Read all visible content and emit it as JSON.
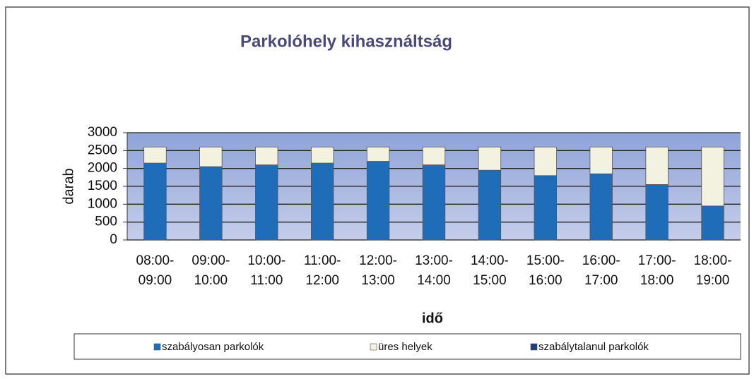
{
  "chart_data": {
    "type": "stacked_bar",
    "title": "Parkolóhely kihasználtság",
    "x_label": "idő",
    "y_label": "darab",
    "categories": [
      [
        "08:00-",
        "09:00"
      ],
      [
        "09:00-",
        "10:00"
      ],
      [
        "10:00-",
        "11:00"
      ],
      [
        "11:00-",
        "12:00"
      ],
      [
        "12:00-",
        "13:00"
      ],
      [
        "13:00-",
        "14:00"
      ],
      [
        "14:00-",
        "15:00"
      ],
      [
        "15:00-",
        "16:00"
      ],
      [
        "16:00-",
        "17:00"
      ],
      [
        "17:00-",
        "18:00"
      ],
      [
        "18:00-",
        "19:00"
      ]
    ],
    "series": [
      {
        "name": "szabályosan parkolók",
        "color": "#1f6db8",
        "values": [
          2150,
          2050,
          2100,
          2150,
          2200,
          2100,
          1950,
          1800,
          1850,
          1550,
          950
        ]
      },
      {
        "name": "üres helyek",
        "color": "#f3f1df",
        "values": [
          450,
          550,
          500,
          450,
          400,
          500,
          650,
          800,
          750,
          1050,
          1650
        ]
      },
      {
        "name": "szabálytalanul parkolók",
        "color": "#1d3f7a",
        "values": [
          0,
          0,
          0,
          0,
          0,
          0,
          0,
          0,
          0,
          0,
          0
        ]
      }
    ],
    "ylim": [
      0,
      3000
    ],
    "yticks": [
      0,
      500,
      1000,
      1500,
      2000,
      2500,
      3000
    ],
    "grid": true,
    "legend": "bottom"
  }
}
